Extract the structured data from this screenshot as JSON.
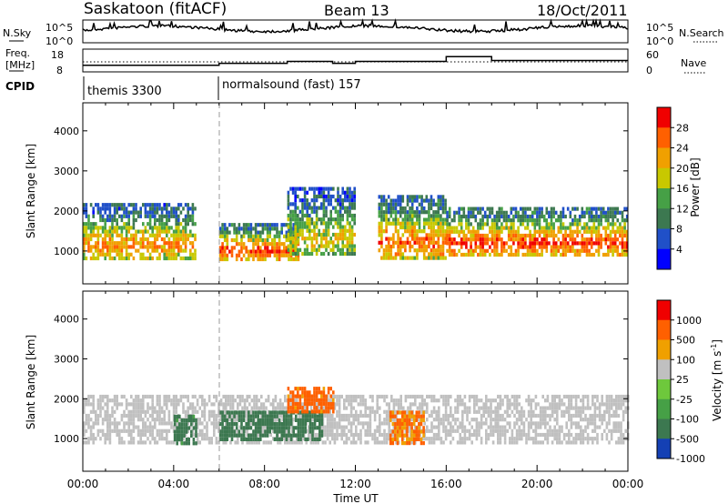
{
  "header": {
    "station": "Saskatoon (fitACF)",
    "beam": "Beam 13",
    "date": "18/Oct/2011"
  },
  "noise_panel": {
    "left_label": "N.Sky",
    "left_ticks": [
      "10^5",
      "10^0"
    ],
    "right_label": "N.Search",
    "right_ticks": [
      "10^5",
      "10^0"
    ]
  },
  "freq_panel": {
    "left_label_1": "Freq.",
    "left_label_2": "[MHz]",
    "left_ticks": [
      "18",
      "8"
    ],
    "right_label": "Nave",
    "right_ticks": [
      "60",
      "0"
    ]
  },
  "cpid": {
    "label": "CPID",
    "segments": [
      {
        "name": "themis 3300",
        "start_hour": 0
      },
      {
        "name": "normalsound (fast) 157",
        "start_hour": 6
      }
    ]
  },
  "x_axis": {
    "label": "Time UT",
    "ticks": [
      "00:00",
      "04:00",
      "08:00",
      "12:00",
      "16:00",
      "20:00",
      "00:00"
    ],
    "range_hours": [
      0,
      24
    ]
  },
  "power_panel": {
    "ylabel": "Slant Range [km]",
    "yticks": [
      "1000",
      "2000",
      "3000",
      "4000"
    ],
    "colorbar_label": "Power [dB]",
    "colorbar_ticks": [
      "4",
      "8",
      "12",
      "16",
      "20",
      "24",
      "28"
    ]
  },
  "velocity_panel": {
    "ylabel": "Slant Range [km]",
    "yticks": [
      "1000",
      "2000",
      "3000",
      "4000"
    ],
    "colorbar_label": "Velocity [m s^-1]",
    "colorbar_ticks": [
      "1000",
      "500",
      "100",
      "25",
      "-25",
      "-100",
      "-500",
      "-1000"
    ]
  },
  "colors": {
    "power_scale": [
      "#0000ff",
      "#2050c8",
      "#3c7850",
      "#46a046",
      "#c8c800",
      "#f0a000",
      "#ff6000",
      "#f00000"
    ],
    "velocity_scale": [
      "#1440b4",
      "#3c7850",
      "#46a046",
      "#6ec83c",
      "#c0c0c0",
      "#f0a000",
      "#ff6000",
      "#f00000"
    ],
    "ground_scatter": "#c0c0c0"
  },
  "chart_data": {
    "type": "heatmap",
    "x_range_hours": [
      0,
      24
    ],
    "y_range_km": [
      180,
      4700
    ],
    "power_regions": [
      {
        "start_hour": 0.0,
        "end_hour": 5.0,
        "range_start_km": 800,
        "range_end_km": 2200,
        "typical_db": 22
      },
      {
        "start_hour": 6.0,
        "end_hour": 9.5,
        "range_start_km": 800,
        "range_end_km": 1700,
        "typical_db": 26
      },
      {
        "start_hour": 9.0,
        "end_hour": 12.0,
        "range_start_km": 900,
        "range_end_km": 2600,
        "typical_db": 18
      },
      {
        "start_hour": 13.0,
        "end_hour": 16.0,
        "range_start_km": 800,
        "range_end_km": 2400,
        "typical_db": 24
      },
      {
        "start_hour": 16.0,
        "end_hour": 24.0,
        "range_start_km": 900,
        "range_end_km": 2100,
        "typical_db": 26
      }
    ],
    "velocity_regions": [
      {
        "start_hour": 0.0,
        "end_hour": 24.0,
        "range_start_km": 900,
        "range_end_km": 2100,
        "class": "ground_scatter",
        "typical_ms": 0
      },
      {
        "start_hour": 4.0,
        "end_hour": 5.0,
        "range_start_km": 900,
        "range_end_km": 1600,
        "class": "ionospheric",
        "typical_ms": 150
      },
      {
        "start_hour": 6.0,
        "end_hour": 10.5,
        "range_start_km": 1000,
        "range_end_km": 1700,
        "class": "ionospheric",
        "typical_ms": 200
      },
      {
        "start_hour": 9.0,
        "end_hour": 11.0,
        "range_start_km": 1700,
        "range_end_km": 2300,
        "class": "ionospheric",
        "typical_ms": -150
      },
      {
        "start_hour": 13.5,
        "end_hour": 15.0,
        "range_start_km": 900,
        "range_end_km": 1700,
        "class": "ionospheric",
        "typical_ms": -120
      }
    ],
    "frequency_mhz": [
      {
        "start_hour": 0,
        "end_hour": 6,
        "value": 10.5
      },
      {
        "start_hour": 6,
        "end_hour": 9,
        "value": 11.5
      },
      {
        "start_hour": 9,
        "end_hour": 11,
        "value": 12.5
      },
      {
        "start_hour": 11,
        "end_hour": 12,
        "value": 11.5
      },
      {
        "start_hour": 12,
        "end_hour": 16,
        "value": 12.5
      },
      {
        "start_hour": 16,
        "end_hour": 18,
        "value": 15
      },
      {
        "start_hour": 18,
        "end_hour": 24,
        "value": 13
      }
    ],
    "nave_reference": 25
  }
}
